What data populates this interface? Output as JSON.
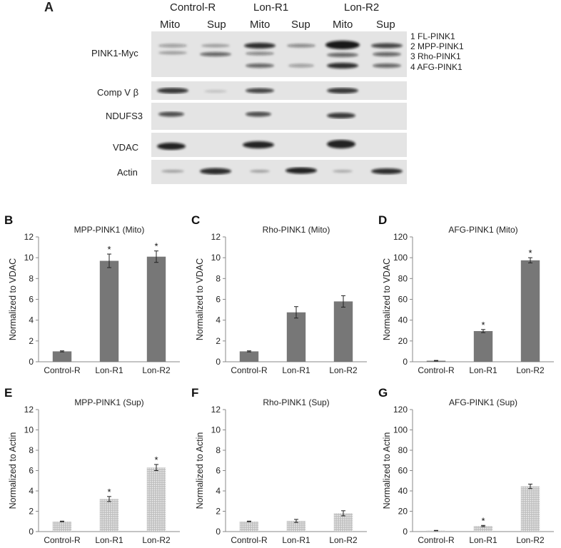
{
  "panel_a": {
    "letter": "A",
    "groups": [
      "Control-R",
      "Lon-R1",
      "Lon-R2"
    ],
    "lanes": [
      "Mito",
      "Sup",
      "Mito",
      "Sup",
      "Mito",
      "Sup"
    ],
    "band_labels": [
      "1 FL-PINK1",
      "2 MPP-PINK1",
      "3 Rho-PINK1",
      "4 AFG-PINK1"
    ],
    "rows": [
      {
        "label": "PINK1-Myc"
      },
      {
        "label": "Comp V β"
      },
      {
        "label": "NDUFS3"
      },
      {
        "label": "VDAC"
      },
      {
        "label": "Actin"
      }
    ]
  },
  "chart_data": [
    {
      "letter": "B",
      "type": "bar",
      "title": "MPP-PINK1 (Mito)",
      "ylabel": "Normalized to VDAC",
      "categories": [
        "Control-R",
        "Lon-R1",
        "Lon-R2"
      ],
      "values": [
        1.0,
        9.7,
        10.1
      ],
      "errors": [
        0.05,
        0.65,
        0.55
      ],
      "significance": [
        "",
        "*",
        "*"
      ],
      "ylim": [
        0,
        12
      ],
      "yticks": [
        0,
        2,
        4,
        6,
        8,
        10,
        12
      ],
      "bar_color": "#777777",
      "pattern": "solid"
    },
    {
      "letter": "C",
      "type": "bar",
      "title": "Rho-PINK1 (Mito)",
      "ylabel": "Normalized to VDAC",
      "categories": [
        "Control-R",
        "Lon-R1",
        "Lon-R2"
      ],
      "values": [
        1.0,
        4.75,
        5.8
      ],
      "errors": [
        0.05,
        0.55,
        0.55
      ],
      "significance": [
        "",
        "",
        ""
      ],
      "ylim": [
        0,
        12
      ],
      "yticks": [
        0,
        2,
        4,
        6,
        8,
        10,
        12
      ],
      "bar_color": "#777777",
      "pattern": "solid"
    },
    {
      "letter": "D",
      "type": "bar",
      "title": "AFG-PINK1 (Mito)",
      "ylabel": "Normalized to VDAC",
      "categories": [
        "Control-R",
        "Lon-R1",
        "Lon-R2"
      ],
      "values": [
        1.0,
        29.5,
        97.5
      ],
      "errors": [
        0.3,
        1.5,
        2.5
      ],
      "significance": [
        "",
        "*",
        "*"
      ],
      "ylim": [
        0,
        120
      ],
      "yticks": [
        0,
        20,
        40,
        60,
        80,
        100,
        120
      ],
      "bar_color": "#777777",
      "pattern": "solid"
    },
    {
      "letter": "E",
      "type": "bar",
      "title": "MPP-PINK1 (Sup)",
      "ylabel": "Normalized to Actin",
      "categories": [
        "Control-R",
        "Lon-R1",
        "Lon-R2"
      ],
      "values": [
        1.0,
        3.2,
        6.3
      ],
      "errors": [
        0.03,
        0.25,
        0.3
      ],
      "significance": [
        "",
        "*",
        "*"
      ],
      "ylim": [
        0,
        12
      ],
      "yticks": [
        0,
        2,
        4,
        6,
        8,
        10,
        12
      ],
      "bar_color": "#cfcfcf",
      "pattern": "dotted"
    },
    {
      "letter": "F",
      "type": "bar",
      "title": "Rho-PINK1 (Sup)",
      "ylabel": "Normalized to Actin",
      "categories": [
        "Control-R",
        "Lon-R1",
        "Lon-R2"
      ],
      "values": [
        1.0,
        1.05,
        1.8
      ],
      "errors": [
        0.03,
        0.15,
        0.25
      ],
      "significance": [
        "",
        "",
        ""
      ],
      "ylim": [
        0,
        12
      ],
      "yticks": [
        0,
        2,
        4,
        6,
        8,
        10,
        12
      ],
      "bar_color": "#cfcfcf",
      "pattern": "dotted"
    },
    {
      "letter": "G",
      "type": "bar",
      "title": "AFG-PINK1 (Sup)",
      "ylabel": "Normalized to Actin",
      "categories": [
        "Control-R",
        "Lon-R1",
        "Lon-R2"
      ],
      "values": [
        1.0,
        5.5,
        44.5
      ],
      "errors": [
        0.2,
        0.6,
        2.2
      ],
      "significance": [
        "",
        "*",
        ""
      ],
      "ylim": [
        0,
        120
      ],
      "yticks": [
        0,
        20,
        40,
        60,
        80,
        100,
        120
      ],
      "bar_color": "#cfcfcf",
      "pattern": "dotted"
    }
  ]
}
